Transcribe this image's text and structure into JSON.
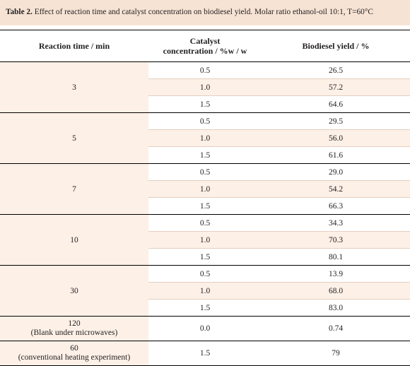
{
  "caption": {
    "label": "Table 2.",
    "text": " Effect of reaction time and catalyst concentration on biodiesel yield. Molar ratio ethanol-oil 10:1, T=60°C"
  },
  "headers": {
    "time": "Reaction time / min",
    "catalyst_line1": "Catalyst",
    "catalyst_line2": "concentration / %w / w",
    "yield": "Biodiesel yield / %"
  },
  "groups": [
    {
      "time": "3",
      "note": "",
      "rows": [
        {
          "cat": "0.5",
          "yield": "26.5"
        },
        {
          "cat": "1.0",
          "yield": "57.2"
        },
        {
          "cat": "1.5",
          "yield": "64.6"
        }
      ]
    },
    {
      "time": "5",
      "note": "",
      "rows": [
        {
          "cat": "0.5",
          "yield": "29.5"
        },
        {
          "cat": "1.0",
          "yield": "56.0"
        },
        {
          "cat": "1.5",
          "yield": "61.6"
        }
      ]
    },
    {
      "time": "7",
      "note": "",
      "rows": [
        {
          "cat": "0.5",
          "yield": "29.0"
        },
        {
          "cat": "1.0",
          "yield": "54.2"
        },
        {
          "cat": "1.5",
          "yield": "66.3"
        }
      ]
    },
    {
      "time": "10",
      "note": "",
      "rows": [
        {
          "cat": "0.5",
          "yield": "34.3"
        },
        {
          "cat": "1.0",
          "yield": "70.3"
        },
        {
          "cat": "1.5",
          "yield": "80.1"
        }
      ]
    },
    {
      "time": "30",
      "note": "",
      "rows": [
        {
          "cat": "0.5",
          "yield": "13.9"
        },
        {
          "cat": "1.0",
          "yield": "68.0"
        },
        {
          "cat": "1.5",
          "yield": "83.0"
        }
      ]
    },
    {
      "time": "120",
      "note": "(Blank under microwaves)",
      "rows": [
        {
          "cat": "0.0",
          "yield": "0.74"
        }
      ]
    },
    {
      "time": "60",
      "note": "(conventional heating experiment)",
      "rows": [
        {
          "cat": "1.5",
          "yield": "79"
        }
      ]
    }
  ]
}
